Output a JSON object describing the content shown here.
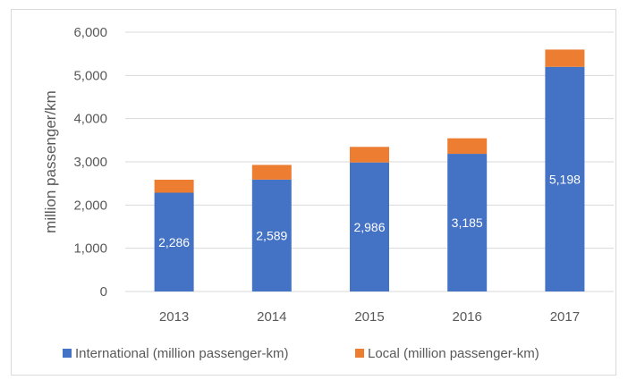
{
  "chart_data": {
    "type": "bar",
    "stacked": true,
    "title": "",
    "xlabel": "",
    "ylabel": "million passenger/km",
    "ylim": [
      0,
      6000
    ],
    "yticks": [
      "0",
      "1,000",
      "2,000",
      "3,000",
      "4,000",
      "5,000",
      "6,000"
    ],
    "ytick_values": [
      0,
      1000,
      2000,
      3000,
      4000,
      5000,
      6000
    ],
    "grid": true,
    "legend_position": "bottom",
    "categories": [
      "2013",
      "2014",
      "2015",
      "2016",
      "2017"
    ],
    "series": [
      {
        "name": "International (million passenger-km)",
        "color": "#4472c4",
        "values": [
          2286,
          2589,
          2986,
          3185,
          5198
        ],
        "labels": [
          "2,286",
          "2,589",
          "2,986",
          "3,185",
          "5,198"
        ]
      },
      {
        "name": "Local (million passenger-km)",
        "color": "#ed7d31",
        "values": [
          300,
          340,
          360,
          360,
          400
        ]
      }
    ]
  }
}
